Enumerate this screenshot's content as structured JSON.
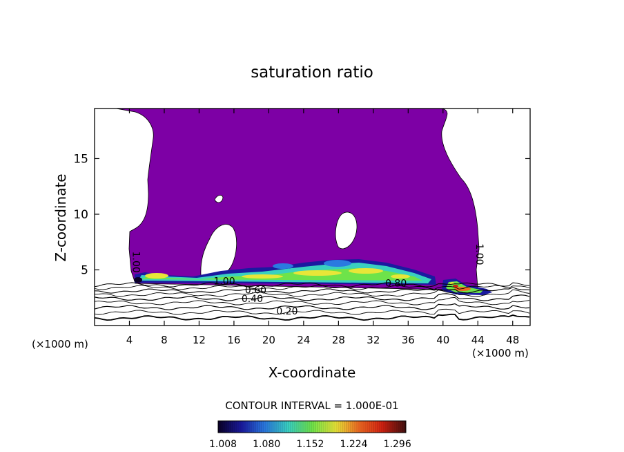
{
  "chart_data": {
    "type": "contour",
    "title": "saturation ratio",
    "xlabel": "X-coordinate",
    "ylabel": "Z-coordinate",
    "x_unit_left": "(×1000 m)",
    "x_unit_right": "(×1000 m)",
    "x_ticks": [
      4,
      8,
      12,
      16,
      20,
      24,
      28,
      32,
      36,
      40,
      44,
      48
    ],
    "y_ticks": [
      5,
      10,
      15
    ],
    "xlim": [
      0,
      50
    ],
    "ylim": [
      0,
      19.5
    ],
    "contour_interval_text": "CONTOUR INTERVAL = 1.000E-01",
    "contour_labels": [
      {
        "text": "1.00",
        "x": 4.4,
        "z": 5.7,
        "rotate": true
      },
      {
        "text": "1.00",
        "x": 43.8,
        "z": 6.4,
        "rotate": true
      },
      {
        "text": "1.00",
        "x": 14.9,
        "z": 3.7
      },
      {
        "text": "0.80",
        "x": 34.6,
        "z": 3.5
      },
      {
        "text": "0.60",
        "x": 18.5,
        "z": 2.9
      },
      {
        "text": "0.40",
        "x": 18.1,
        "z": 2.1
      },
      {
        "text": "0.20",
        "x": 22.1,
        "z": 1.0
      }
    ],
    "colorbar": {
      "tick_labels": [
        "1.008",
        "1.080",
        "1.152",
        "1.224",
        "1.296"
      ],
      "range": [
        1.0,
        1.31
      ],
      "colors": [
        "#0a0026",
        "#1a1aa0",
        "#2a7ae0",
        "#39d0c0",
        "#6ee34a",
        "#e8e638",
        "#f06a22",
        "#d02010",
        "#401010"
      ]
    },
    "fill_color": "#7d00a5",
    "line_color": "#000000"
  }
}
